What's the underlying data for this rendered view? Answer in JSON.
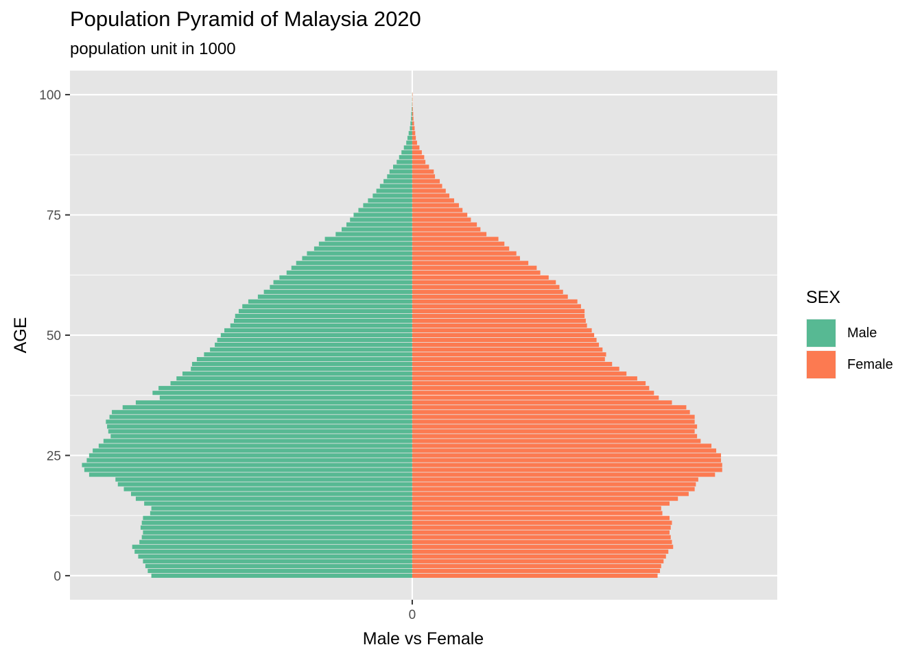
{
  "chart_data": {
    "type": "bar",
    "orientation": "horizontal",
    "title": "Population Pyramid of Malaysia 2020",
    "subtitle": "population unit in 1000",
    "xlabel": "Male vs Female",
    "ylabel": "AGE",
    "y_ticks": [
      0,
      25,
      50,
      75,
      100
    ],
    "x_ticks": [
      0
    ],
    "xlim": [
      -286,
      305
    ],
    "ylim": [
      -5,
      105
    ],
    "grid": true,
    "legend": {
      "title": "SEX",
      "position": "right"
    },
    "ages": [
      0,
      1,
      2,
      3,
      4,
      5,
      6,
      7,
      8,
      9,
      10,
      11,
      12,
      13,
      14,
      15,
      16,
      17,
      18,
      19,
      20,
      21,
      22,
      23,
      24,
      25,
      26,
      27,
      28,
      29,
      30,
      31,
      32,
      33,
      34,
      35,
      36,
      37,
      38,
      39,
      40,
      41,
      42,
      43,
      44,
      45,
      46,
      47,
      48,
      49,
      50,
      51,
      52,
      53,
      54,
      55,
      56,
      57,
      58,
      59,
      60,
      61,
      62,
      63,
      64,
      65,
      66,
      67,
      68,
      69,
      70,
      71,
      72,
      73,
      74,
      75,
      76,
      77,
      78,
      79,
      80,
      81,
      82,
      83,
      84,
      85,
      86,
      87,
      88,
      89,
      90,
      91,
      92,
      93,
      94,
      95,
      96,
      97,
      98,
      99,
      100
    ],
    "series": [
      {
        "name": "Male",
        "color": "#57b993",
        "values": [
          -218,
          -221,
          -223,
          -225,
          -229,
          -232,
          -234,
          -228,
          -226,
          -225,
          -227,
          -226,
          -225,
          -219,
          -218,
          -224,
          -231,
          -235,
          -241,
          -246,
          -248,
          -270,
          -274,
          -276,
          -272,
          -270,
          -267,
          -262,
          -258,
          -252,
          -254,
          -255,
          -256,
          -253,
          -251,
          -242,
          -231,
          -211,
          -217,
          -212,
          -202,
          -197,
          -192,
          -185,
          -184,
          -180,
          -174,
          -169,
          -165,
          -163,
          -160,
          -157,
          -152,
          -149,
          -148,
          -145,
          -142,
          -137,
          -129,
          -124,
          -119,
          -116,
          -111,
          -105,
          -101,
          -97,
          -92,
          -88,
          -82,
          -78,
          -73,
          -64,
          -59,
          -55,
          -52,
          -49,
          -45,
          -41,
          -37,
          -33,
          -30,
          -27,
          -24,
          -21,
          -19,
          -16,
          -13,
          -11,
          -9,
          -7,
          -5,
          -4,
          -3,
          -2,
          -1.5,
          -1,
          -0.8,
          -0.5,
          -0.3,
          -0.2,
          -0.1
        ]
      },
      {
        "name": "Female",
        "color": "#fc7a51",
        "values": [
          205,
          207,
          208,
          210,
          212,
          214,
          218,
          217,
          216,
          215,
          216,
          217,
          215,
          209,
          208,
          215,
          222,
          231,
          236,
          237,
          239,
          253,
          259,
          259,
          258,
          258,
          254,
          250,
          241,
          238,
          236,
          238,
          236,
          236,
          232,
          229,
          217,
          206,
          202,
          198,
          195,
          188,
          179,
          173,
          167,
          161,
          162,
          159,
          156,
          154,
          152,
          150,
          146,
          145,
          144,
          144,
          141,
          138,
          130,
          126,
          123,
          120,
          114,
          107,
          104,
          97,
          90,
          87,
          81,
          77,
          72,
          62,
          57,
          54,
          49,
          46,
          42,
          39,
          35,
          31,
          28,
          25,
          23,
          19,
          18,
          14,
          11,
          10,
          8,
          6,
          4,
          3,
          2.5,
          2,
          1.5,
          1,
          0.8,
          0.5,
          0.3,
          0.2,
          0.1
        ]
      }
    ]
  }
}
